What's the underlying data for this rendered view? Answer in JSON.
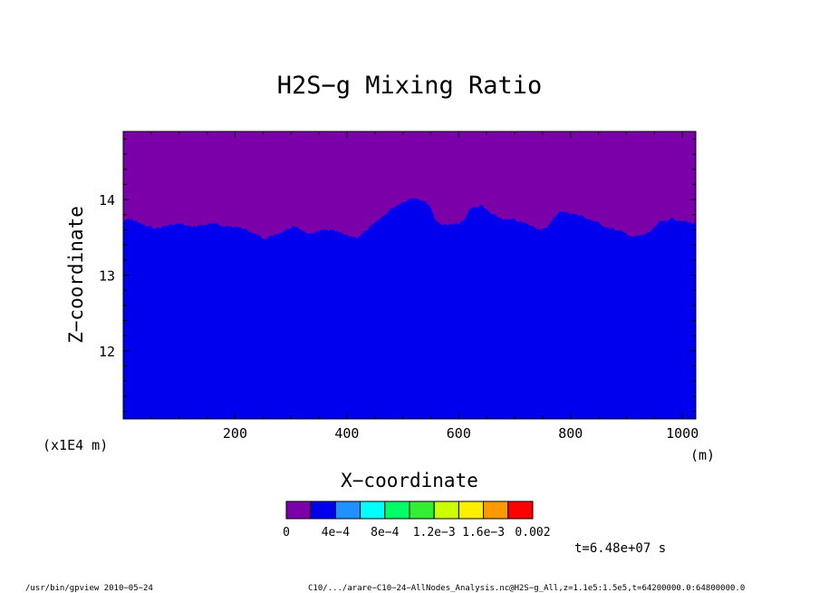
{
  "chart_data": {
    "type": "heatmap",
    "title": "H2S−g Mixing Ratio",
    "xlabel": "X−coordinate",
    "ylabel": "Z−coordinate",
    "x_unit": "(m)",
    "y_scale_label": "(x1E4 m)",
    "xlim": [
      0,
      1024
    ],
    "ylim": [
      11.1,
      14.9
    ],
    "x_ticks": [
      200,
      400,
      600,
      800,
      1000
    ],
    "x_tick_labels": [
      "200",
      "400",
      "600",
      "800",
      "1000"
    ],
    "y_ticks": [
      12,
      13,
      14
    ],
    "y_tick_labels": [
      "12",
      "13",
      "14"
    ],
    "fill_colors": {
      "upper": "#7b00a9",
      "lower": "#0000ee"
    },
    "interface": {
      "x": [
        0,
        10,
        20,
        40,
        60,
        80,
        100,
        120,
        140,
        160,
        180,
        200,
        220,
        240,
        250,
        260,
        280,
        300,
        310,
        320,
        340,
        360,
        380,
        400,
        420,
        440,
        460,
        480,
        500,
        520,
        540,
        550,
        560,
        580,
        600,
        610,
        620,
        640,
        660,
        680,
        700,
        720,
        740,
        750,
        760,
        780,
        800,
        820,
        840,
        860,
        880,
        900,
        910,
        920,
        940,
        960,
        980,
        1000,
        1010,
        1024
      ],
      "z": [
        13.7,
        13.75,
        13.72,
        13.65,
        13.62,
        13.66,
        13.68,
        13.64,
        13.66,
        13.68,
        13.65,
        13.64,
        13.6,
        13.55,
        13.47,
        13.5,
        13.56,
        13.63,
        13.65,
        13.57,
        13.55,
        13.6,
        13.58,
        13.52,
        13.5,
        13.62,
        13.75,
        13.88,
        13.97,
        14.03,
        13.98,
        13.9,
        13.7,
        13.66,
        13.68,
        13.73,
        13.88,
        13.92,
        13.8,
        13.74,
        13.73,
        13.68,
        13.62,
        13.6,
        13.65,
        13.85,
        13.82,
        13.78,
        13.72,
        13.65,
        13.6,
        13.55,
        13.5,
        13.52,
        13.55,
        13.7,
        13.75,
        13.72,
        13.7,
        13.68
      ]
    },
    "colorbar": {
      "colors": [
        "#7b00a9",
        "#0000ee",
        "#1e90ff",
        "#00ffff",
        "#00ff66",
        "#33ee33",
        "#ccff00",
        "#ffee00",
        "#ff9900",
        "#ff0000",
        "#ff9999"
      ],
      "labels": [
        "0",
        "4e−4",
        "8e−4",
        "1.2e−3",
        "1.6e−3",
        "0.002"
      ]
    }
  },
  "time_label": "t=6.48e+07 s",
  "footer_left": "/usr/bin/gpview  2010−05−24",
  "footer_right": "C10/.../arare−C10−24−AllNodes_Analysis.nc@H2S−g_All,z=1.1e5:1.5e5,t=64200000.0:64800000.0"
}
